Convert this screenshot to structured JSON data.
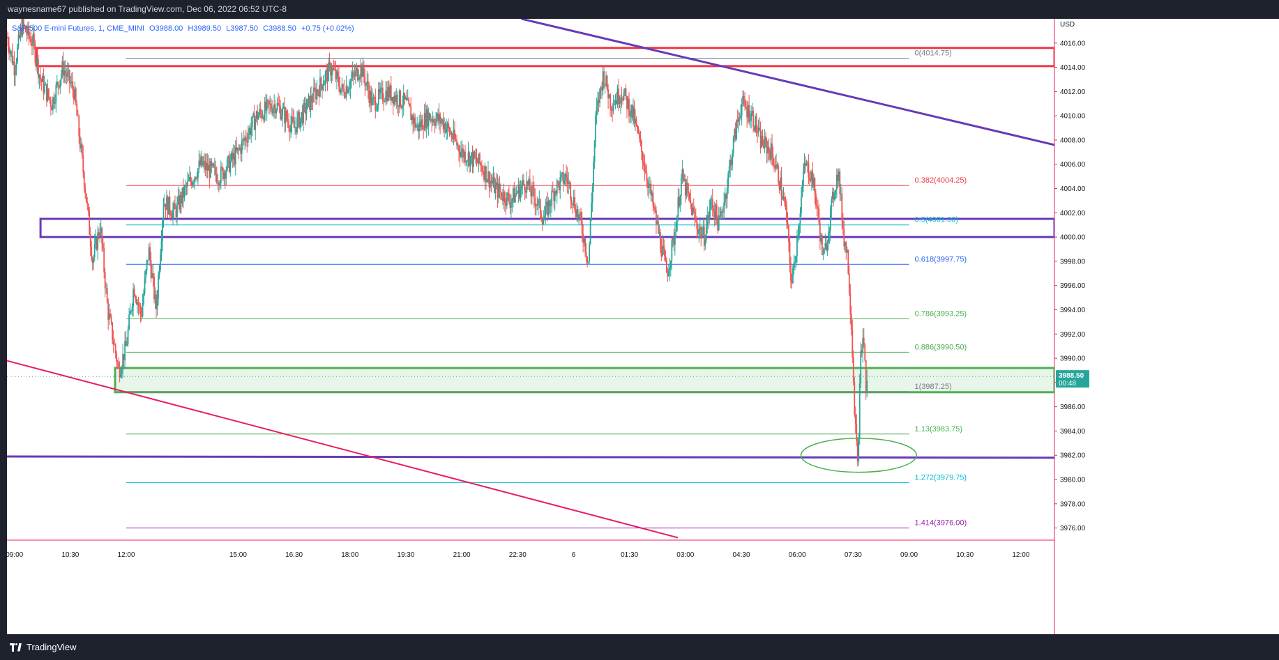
{
  "header": {
    "published": "waynesname67 published on TradingView.com, Dec 06, 2022 06:52 UTC-8"
  },
  "legend": {
    "symbol": "S&P 500 E-mini Futures, 1, CME_MINI",
    "open": "O3988.00",
    "high": "H3989.50",
    "low": "L3987.50",
    "close": "C3988.50",
    "change": "+0.75 (+0.02%)"
  },
  "price_axis": {
    "currency": "USD",
    "last_price": "3988.50",
    "countdown": "00:48"
  },
  "footer": {
    "brand": "TradingView"
  },
  "colors": {
    "up": "#26a69a",
    "down": "#ef5350",
    "purple_lines": "#673ab7",
    "red_box": "#f23645",
    "green_box": "#4caf50",
    "trendline": "#e91e63"
  },
  "chart_data": {
    "type": "candlestick",
    "ylabel": "USD",
    "ylim": [
      3975.0,
      4018.0
    ],
    "y_ticks": [
      3976,
      3978,
      3980,
      3982,
      3984,
      3986,
      3988,
      3990,
      3992,
      3994,
      3996,
      3998,
      4000,
      4002,
      4004,
      4006,
      4008,
      4010,
      4012,
      4014,
      4016
    ],
    "y_tick_labels": [
      "3976.00",
      "3978.00",
      "3980.00",
      "3982.00",
      "3984.00",
      "3986.00",
      "3988.00",
      "3990.00",
      "3992.00",
      "3994.00",
      "3996.00",
      "3998.00",
      "4000.00",
      "4002.00",
      "4004.00",
      "4006.00",
      "4008.00",
      "4010.00",
      "4012.00",
      "4014.00",
      "4016.00"
    ],
    "x_tick_labels": [
      "09:00",
      "10:30",
      "12:00",
      "15:00",
      "16:30",
      "18:00",
      "19:30",
      "21:00",
      "22:30",
      "6",
      "01:30",
      "03:00",
      "04:30",
      "06:00",
      "07:30",
      "09:00",
      "10:30",
      "12:00"
    ],
    "x_tick_hours": [
      9.0,
      10.5,
      12.0,
      15.0,
      16.5,
      18.0,
      19.5,
      21.0,
      22.5,
      24.0,
      25.5,
      27.0,
      28.5,
      30.0,
      31.5,
      33.0,
      34.5,
      36.0
    ],
    "xlim": [
      8.8,
      36.9
    ],
    "price_path": [
      [
        8.8,
        4016.5
      ],
      [
        9.0,
        4014.0
      ],
      [
        9.2,
        4017.5
      ],
      [
        9.5,
        4016.0
      ],
      [
        9.7,
        4013.0
      ],
      [
        10.0,
        4011.0
      ],
      [
        10.3,
        4014.0
      ],
      [
        10.6,
        4012.0
      ],
      [
        10.9,
        4004.0
      ],
      [
        11.1,
        3998.0
      ],
      [
        11.3,
        4001.0
      ],
      [
        11.5,
        3994.0
      ],
      [
        11.8,
        3989.0
      ],
      [
        12.0,
        3991.0
      ],
      [
        12.2,
        3996.0
      ],
      [
        12.4,
        3993.5
      ],
      [
        12.6,
        3999.0
      ],
      [
        12.8,
        3994.0
      ],
      [
        13.0,
        4003.0
      ],
      [
        13.3,
        4002.0
      ],
      [
        13.6,
        4004.0
      ],
      [
        14.0,
        4006.0
      ],
      [
        14.5,
        4005.0
      ],
      [
        15.0,
        4007.0
      ],
      [
        15.5,
        4010.0
      ],
      [
        16.0,
        4011.0
      ],
      [
        16.5,
        4009.0
      ],
      [
        17.0,
        4011.5
      ],
      [
        17.5,
        4014.0
      ],
      [
        17.8,
        4012.0
      ],
      [
        18.3,
        4014.0
      ],
      [
        18.6,
        4011.0
      ],
      [
        19.0,
        4012.0
      ],
      [
        19.5,
        4011.0
      ],
      [
        19.8,
        4009.0
      ],
      [
        20.1,
        4010.0
      ],
      [
        20.5,
        4009.5
      ],
      [
        21.0,
        4007.0
      ],
      [
        21.5,
        4006.0
      ],
      [
        21.9,
        4004.0
      ],
      [
        22.3,
        4003.0
      ],
      [
        22.7,
        4004.5
      ],
      [
        23.0,
        4003.0
      ],
      [
        23.2,
        4001.5
      ],
      [
        23.5,
        4004.0
      ],
      [
        23.8,
        4005.0
      ],
      [
        24.0,
        4003.0
      ],
      [
        24.2,
        4001.0
      ],
      [
        24.4,
        3998.0
      ],
      [
        24.6,
        4010.0
      ],
      [
        24.8,
        4013.5
      ],
      [
        25.0,
        4011.0
      ],
      [
        25.3,
        4012.0
      ],
      [
        25.6,
        4010.0
      ],
      [
        25.9,
        4006.0
      ],
      [
        26.1,
        4003.0
      ],
      [
        26.3,
        4000.0
      ],
      [
        26.5,
        3997.0
      ],
      [
        26.7,
        4000.0
      ],
      [
        26.9,
        4005.0
      ],
      [
        27.1,
        4003.0
      ],
      [
        27.3,
        4001.0
      ],
      [
        27.5,
        4000.0
      ],
      [
        27.7,
        4003.0
      ],
      [
        27.9,
        4001.0
      ],
      [
        28.1,
        4004.0
      ],
      [
        28.3,
        4008.0
      ],
      [
        28.5,
        4011.0
      ],
      [
        28.8,
        4010.0
      ],
      [
        29.0,
        4008.0
      ],
      [
        29.3,
        4007.0
      ],
      [
        29.5,
        4005.0
      ],
      [
        29.7,
        4002.0
      ],
      [
        29.85,
        3996.0
      ],
      [
        30.0,
        4000.0
      ],
      [
        30.2,
        4006.0
      ],
      [
        30.4,
        4005.0
      ],
      [
        30.55,
        4002.0
      ],
      [
        30.7,
        3998.0
      ],
      [
        30.85,
        4001.0
      ],
      [
        31.0,
        4004.0
      ],
      [
        31.1,
        4005.5
      ],
      [
        31.25,
        4000.0
      ],
      [
        31.35,
        3998.5
      ],
      [
        31.45,
        3993.0
      ],
      [
        31.55,
        3985.0
      ],
      [
        31.62,
        3981.0
      ],
      [
        31.7,
        3990.0
      ],
      [
        31.78,
        3992.0
      ],
      [
        31.85,
        3987.0
      ],
      [
        31.88,
        3988.5
      ]
    ],
    "last_price": 3988.5,
    "fib_levels": [
      {
        "ratio": 0,
        "value": 4014.75,
        "label": "0(4014.75)",
        "color": "#787b86"
      },
      {
        "ratio": 0.382,
        "value": 4004.25,
        "label": "0.382(4004.25)",
        "color": "#f23645"
      },
      {
        "ratio": 0.5,
        "value": 4001.0,
        "label": "0.5(4001.00)",
        "color": "#00bcd4"
      },
      {
        "ratio": 0.618,
        "value": 3997.75,
        "label": "0.618(3997.75)",
        "color": "#2962ff"
      },
      {
        "ratio": 0.786,
        "value": 3993.25,
        "label": "0.786(3993.25)",
        "color": "#4caf50"
      },
      {
        "ratio": 0.886,
        "value": 3990.5,
        "label": "0.886(3990.50)",
        "color": "#4caf50"
      },
      {
        "ratio": 1,
        "value": 3987.25,
        "label": "1(3987.25)",
        "color": "#787b86"
      },
      {
        "ratio": 1.13,
        "value": 3983.75,
        "label": "1.13(3983.75)",
        "color": "#4caf50"
      },
      {
        "ratio": 1.272,
        "value": 3979.75,
        "label": "1.272(3979.75)",
        "color": "#00bcd4"
      },
      {
        "ratio": 1.414,
        "value": 3976.0,
        "label": "1.414(3976.00)",
        "color": "#9c27b0"
      }
    ],
    "fib_x_range": [
      12.0,
      33.0
    ],
    "zones": [
      {
        "name": "red-resistance",
        "y_low": 4014.1,
        "y_high": 4015.6,
        "x_start": 9.6,
        "color": "#f23645",
        "fill": "none"
      },
      {
        "name": "purple-pivot",
        "y_low": 4000.0,
        "y_high": 4001.5,
        "x_start": 9.7,
        "color": "#673ab7",
        "fill": "none"
      },
      {
        "name": "green-support",
        "y_low": 3987.2,
        "y_high": 3989.2,
        "x_start": 11.7,
        "color": "#4caf50",
        "fill": "#e8f5e9"
      }
    ],
    "horizontal_lines": [
      {
        "name": "purple-support",
        "y_start": 3981.9,
        "y_end": 3981.8,
        "color": "#673ab7"
      }
    ],
    "trendlines": [
      {
        "name": "purple-downtrend",
        "x1": 22.6,
        "y1": 4018.0,
        "x2": 36.9,
        "y2": 4007.6,
        "color": "#673ab7",
        "width": 3
      },
      {
        "name": "pink-downtrend",
        "x1": 8.8,
        "y1": 3989.8,
        "x2": 26.8,
        "y2": 3975.2,
        "color": "#e91e63",
        "width": 2
      }
    ],
    "ellipse": {
      "cx": 31.65,
      "cy": 3982.0,
      "rx_hours": 1.55,
      "ry_price": 1.4,
      "color": "#4caf50"
    }
  }
}
